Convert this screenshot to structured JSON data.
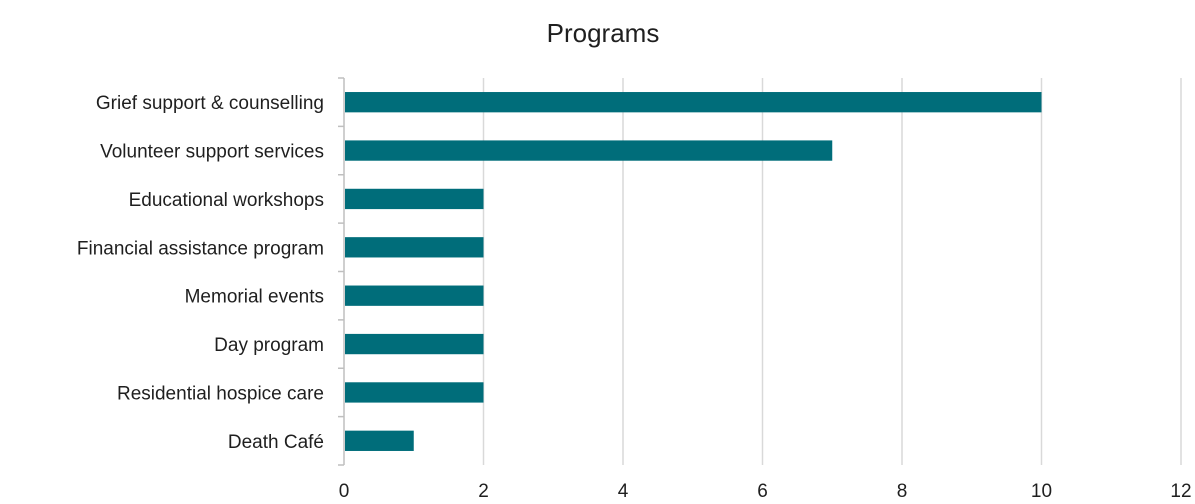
{
  "chart_data": {
    "type": "bar",
    "orientation": "horizontal",
    "title": "Programs",
    "categories": [
      "Grief support & counselling",
      "Volunteer support services",
      "Educational workshops",
      "Financial assistance program",
      "Memorial events",
      "Day program",
      "Residential hospice care",
      "Death Café"
    ],
    "values": [
      10,
      7,
      2,
      2,
      2,
      2,
      2,
      1
    ],
    "xlim": [
      0,
      12
    ],
    "x_ticks": [
      "0",
      "2",
      "4",
      "6",
      "8",
      "10",
      "12"
    ],
    "grid": true,
    "legend": false,
    "colors": {
      "bar": "#006d7a",
      "grid": "#d9d9d9",
      "axis": "#bfbfbf",
      "text": "#1f1f1f"
    }
  }
}
